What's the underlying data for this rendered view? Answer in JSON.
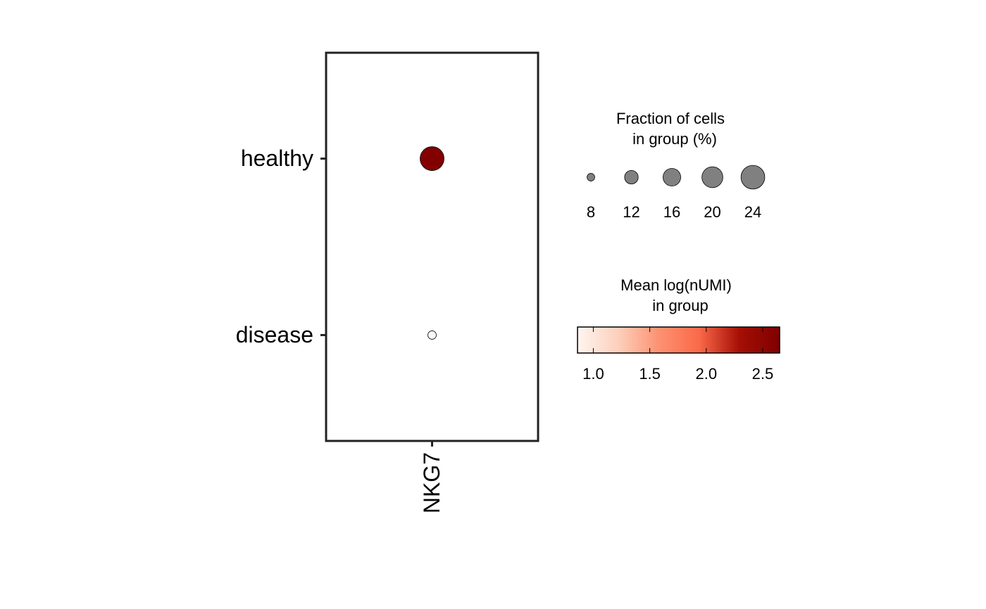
{
  "chart_data": {
    "type": "dot",
    "x_categories": [
      "NKG7"
    ],
    "y_categories": [
      "healthy",
      "disease"
    ],
    "values": [
      [
        2.62
      ],
      [
        0.87
      ]
    ],
    "sizes": [
      [
        24.3
      ],
      [
        8.4
      ]
    ],
    "size_legend_title": [
      "Fraction of cells",
      "in group (%)"
    ],
    "size_ticks": [
      8,
      12,
      16,
      20,
      24
    ],
    "size_color": "#808080",
    "color_legend_title": [
      "Mean log(nUMI)",
      "in group"
    ],
    "colorlim": [
      0.86,
      2.65
    ],
    "colorticks": [
      {
        "value": 1.0,
        "label": "1.0"
      },
      {
        "value": 1.5,
        "label": "1.5"
      },
      {
        "value": 2.0,
        "label": "2.0"
      },
      {
        "value": 2.5,
        "label": "2.5"
      }
    ],
    "colors": [
      "#fff5f0",
      "#fdd0bc",
      "#fc9272",
      "#fb6a4a",
      "#a50f05",
      "#7f0000"
    ]
  }
}
